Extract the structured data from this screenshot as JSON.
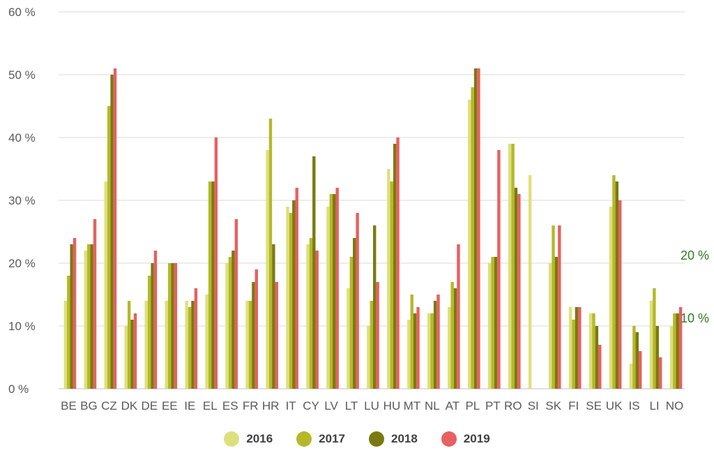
{
  "chart_data": {
    "type": "bar",
    "title": "",
    "xlabel": "",
    "ylabel": "",
    "ylim": [
      0,
      60
    ],
    "yticks": [
      "0 %",
      "10 %",
      "20 %",
      "30 %",
      "40 %",
      "50 %",
      "60 %"
    ],
    "grid": true,
    "legend_position": "bottom",
    "categories": [
      "BE",
      "BG",
      "CZ",
      "DK",
      "DE",
      "EE",
      "IE",
      "EL",
      "ES",
      "FR",
      "HR",
      "IT",
      "CY",
      "LV",
      "LT",
      "LU",
      "HU",
      "MT",
      "NL",
      "AT",
      "PL",
      "PT",
      "RO",
      "SI",
      "SK",
      "FI",
      "SE",
      "UK",
      "IS",
      "LI",
      "NO"
    ],
    "series": [
      {
        "name": "2016",
        "color": "#dde07a",
        "values": [
          14,
          22,
          33,
          10,
          14,
          14,
          14,
          15,
          20,
          14,
          38,
          29,
          23,
          29,
          16,
          10,
          35,
          11,
          12,
          13,
          46,
          20,
          39,
          34,
          20,
          13,
          12,
          29,
          4,
          14,
          10
        ]
      },
      {
        "name": "2017",
        "color": "#b5b829",
        "values": [
          18,
          23,
          45,
          14,
          18,
          20,
          13,
          33,
          21,
          14,
          43,
          28,
          24,
          31,
          21,
          14,
          33,
          15,
          12,
          17,
          48,
          21,
          39,
          null,
          26,
          11,
          12,
          34,
          10,
          16,
          12
        ]
      },
      {
        "name": "2018",
        "color": "#7a7a10",
        "values": [
          23,
          23,
          50,
          11,
          20,
          20,
          14,
          33,
          22,
          17,
          23,
          30,
          37,
          31,
          24,
          26,
          39,
          12,
          14,
          16,
          51,
          21,
          32,
          null,
          21,
          13,
          10,
          33,
          9,
          10,
          12
        ]
      },
      {
        "name": "2019",
        "color": "#e86060",
        "values": [
          24,
          27,
          51,
          12,
          22,
          20,
          16,
          40,
          27,
          19,
          17,
          32,
          22,
          32,
          28,
          17,
          40,
          13,
          15,
          23,
          51,
          38,
          31,
          null,
          26,
          13,
          7,
          30,
          6,
          5,
          13
        ]
      }
    ],
    "annotations": [
      {
        "text": "20 %",
        "value": 20
      },
      {
        "text": "10 %",
        "value": 10
      }
    ]
  }
}
